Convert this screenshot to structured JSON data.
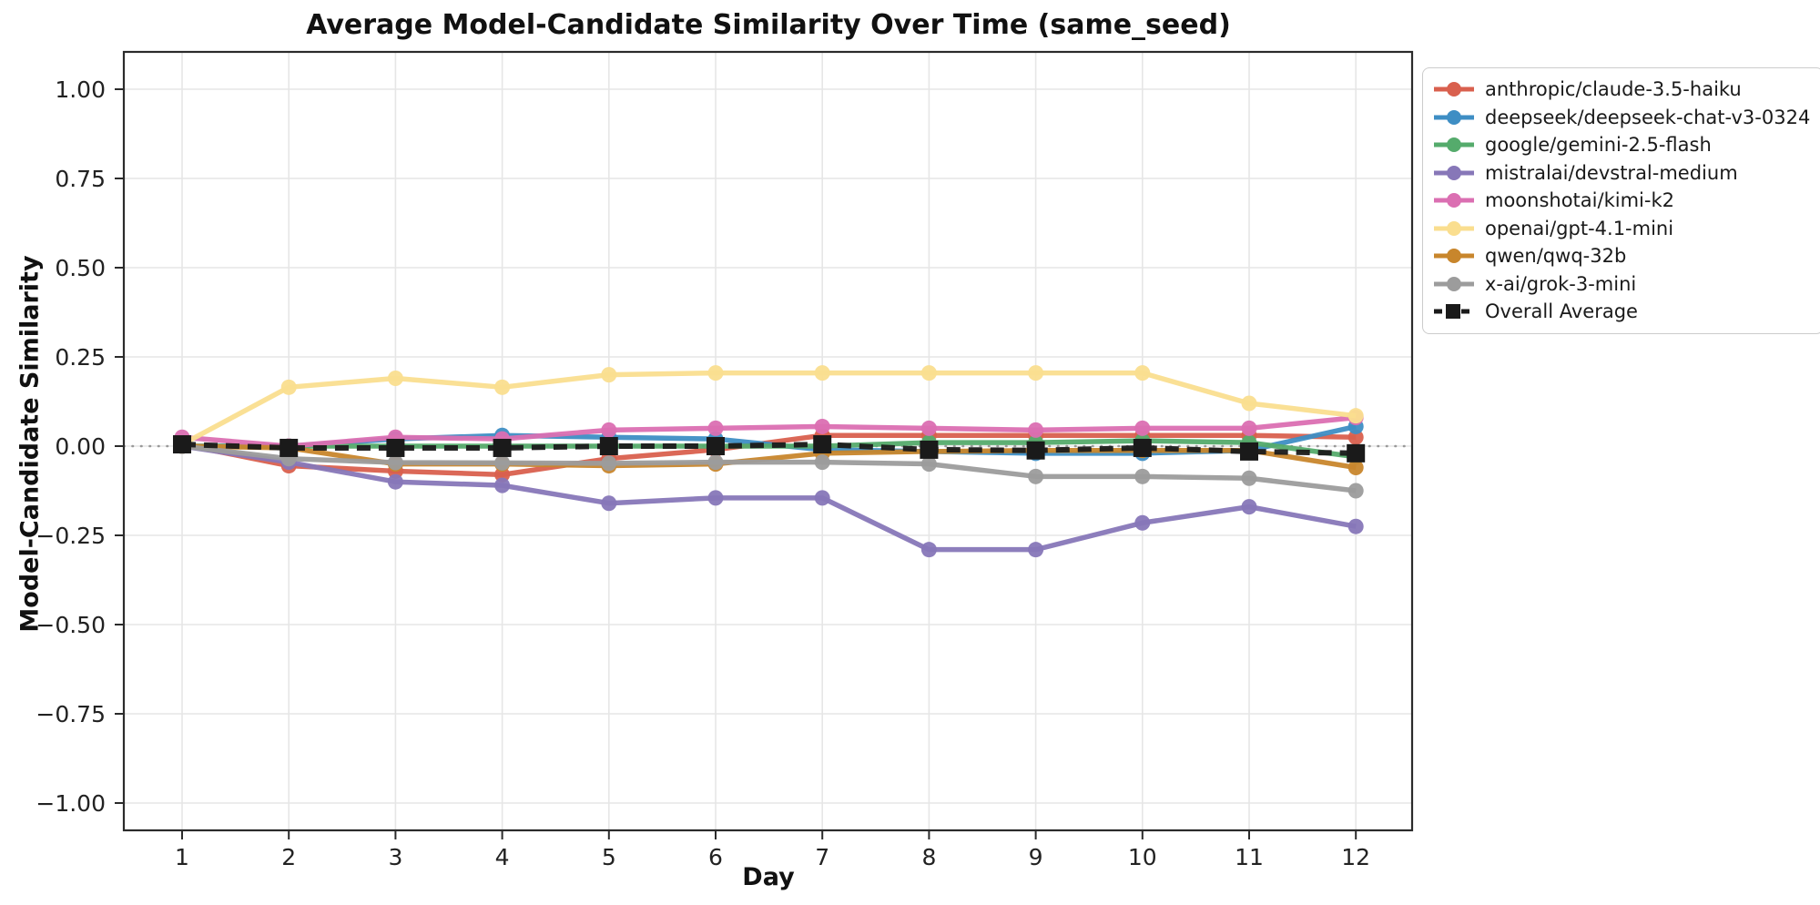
{
  "chart_data": {
    "type": "line",
    "title": "Average Model-Candidate Similarity Over Time (same_seed)",
    "xlabel": "Day",
    "ylabel": "Model-Candidate Similarity",
    "x": [
      1,
      2,
      3,
      4,
      5,
      6,
      7,
      8,
      9,
      10,
      11,
      12
    ],
    "xlim": [
      0.45,
      12.55
    ],
    "ylim": [
      -1.08,
      1.1
    ],
    "yticks": [
      1.0,
      0.75,
      0.5,
      0.25,
      0.0,
      -0.25,
      -0.5,
      -0.75,
      -1.0
    ],
    "grid": true,
    "zero_line": "dotted gray horizontal at y=0",
    "legend_position": "outside upper right",
    "series": [
      {
        "name": "anthropic/claude-3.5-haiku",
        "color": "#d9604e",
        "line": "solid",
        "marker": "circle",
        "values": [
          0.005,
          -0.055,
          -0.07,
          -0.08,
          -0.035,
          -0.01,
          0.03,
          0.03,
          0.03,
          0.03,
          0.03,
          0.025
        ]
      },
      {
        "name": "deepseek/deepseek-chat-v3-0324",
        "color": "#3e8ec4",
        "line": "solid",
        "marker": "circle",
        "values": [
          0.0,
          0.0,
          0.02,
          0.03,
          0.025,
          0.02,
          -0.01,
          -0.015,
          -0.02,
          -0.02,
          -0.012,
          0.055
        ]
      },
      {
        "name": "google/gemini-2.5-flash",
        "color": "#55ab6c",
        "line": "solid",
        "marker": "circle",
        "values": [
          0.0,
          0.0,
          0.0,
          0.0,
          0.0,
          0.0,
          0.0,
          0.01,
          0.01,
          0.015,
          0.01,
          -0.03
        ]
      },
      {
        "name": "mistralai/devstral-medium",
        "color": "#8777b8",
        "line": "solid",
        "marker": "circle",
        "values": [
          0.0,
          -0.045,
          -0.1,
          -0.11,
          -0.16,
          -0.145,
          -0.145,
          -0.29,
          -0.29,
          -0.215,
          -0.17,
          -0.225
        ]
      },
      {
        "name": "moonshotai/kimi-k2",
        "color": "#db6fb2",
        "line": "solid",
        "marker": "circle",
        "values": [
          0.025,
          0.0,
          0.025,
          0.02,
          0.045,
          0.05,
          0.055,
          0.05,
          0.045,
          0.05,
          0.05,
          0.08
        ]
      },
      {
        "name": "openai/gpt-4.1-mini",
        "color": "#fade8f",
        "line": "solid",
        "marker": "circle",
        "values": [
          0.005,
          0.165,
          0.19,
          0.165,
          0.2,
          0.205,
          0.205,
          0.205,
          0.205,
          0.205,
          0.12,
          0.085
        ]
      },
      {
        "name": "qwen/qwq-32b",
        "color": "#c8862c",
        "line": "solid",
        "marker": "circle",
        "values": [
          0.0,
          -0.005,
          -0.05,
          -0.05,
          -0.055,
          -0.05,
          -0.02,
          -0.015,
          -0.012,
          -0.012,
          -0.012,
          -0.06
        ]
      },
      {
        "name": "x-ai/grok-3-mini",
        "color": "#9c9c9c",
        "line": "solid",
        "marker": "circle",
        "values": [
          0.0,
          -0.035,
          -0.046,
          -0.047,
          -0.048,
          -0.045,
          -0.045,
          -0.05,
          -0.085,
          -0.085,
          -0.09,
          -0.125
        ]
      },
      {
        "name": "Overall Average",
        "color": "#1a1a1a",
        "line": "dashed",
        "marker": "square",
        "values": [
          0.005,
          -0.005,
          -0.005,
          -0.005,
          0.0,
          0.0,
          0.005,
          -0.01,
          -0.012,
          -0.005,
          -0.015,
          -0.02
        ]
      }
    ]
  },
  "colors": {
    "background": "#ffffff",
    "grid": "#e6e6e6",
    "spine": "#2b2b2b",
    "zero_line": "#999999",
    "tick_text": "#222222",
    "legend_border": "#cccccc"
  }
}
